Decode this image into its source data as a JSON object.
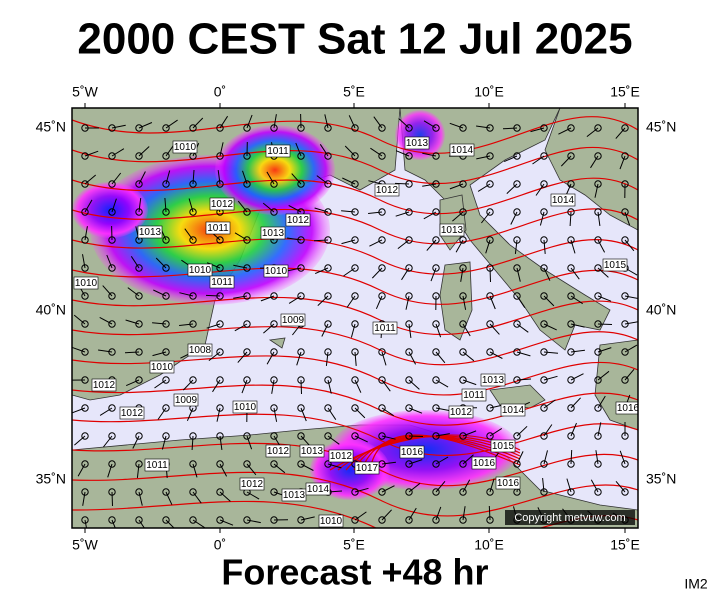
{
  "header": {
    "title": "2000 CEST Sat 12 Jul 2025"
  },
  "footer": {
    "forecast": "Forecast +48 hr",
    "image_id": "IM2"
  },
  "map": {
    "longitude_labels": [
      "5˚W",
      "0˚",
      "5˚E",
      "10˚E",
      "15˚E"
    ],
    "latitude_labels": [
      "45˚N",
      "40˚N",
      "35˚N"
    ],
    "isobar_labels": [
      "1010",
      "1011",
      "1013",
      "1014",
      "1012",
      "1011",
      "1013",
      "1013",
      "1012",
      "1010",
      "1011",
      "1010",
      "1012",
      "1013",
      "1014",
      "1015",
      "1010",
      "1009",
      "1011",
      "1008",
      "1010",
      "1013",
      "1012",
      "1011",
      "1012",
      "1014",
      "1016",
      "1009",
      "1012",
      "1010",
      "1012",
      "1013",
      "1012",
      "1017",
      "1016",
      "1015",
      "1016",
      "1011",
      "1012",
      "1013",
      "1014",
      "1016",
      "1010"
    ],
    "copyright": "Copyright metvuw.com"
  }
}
